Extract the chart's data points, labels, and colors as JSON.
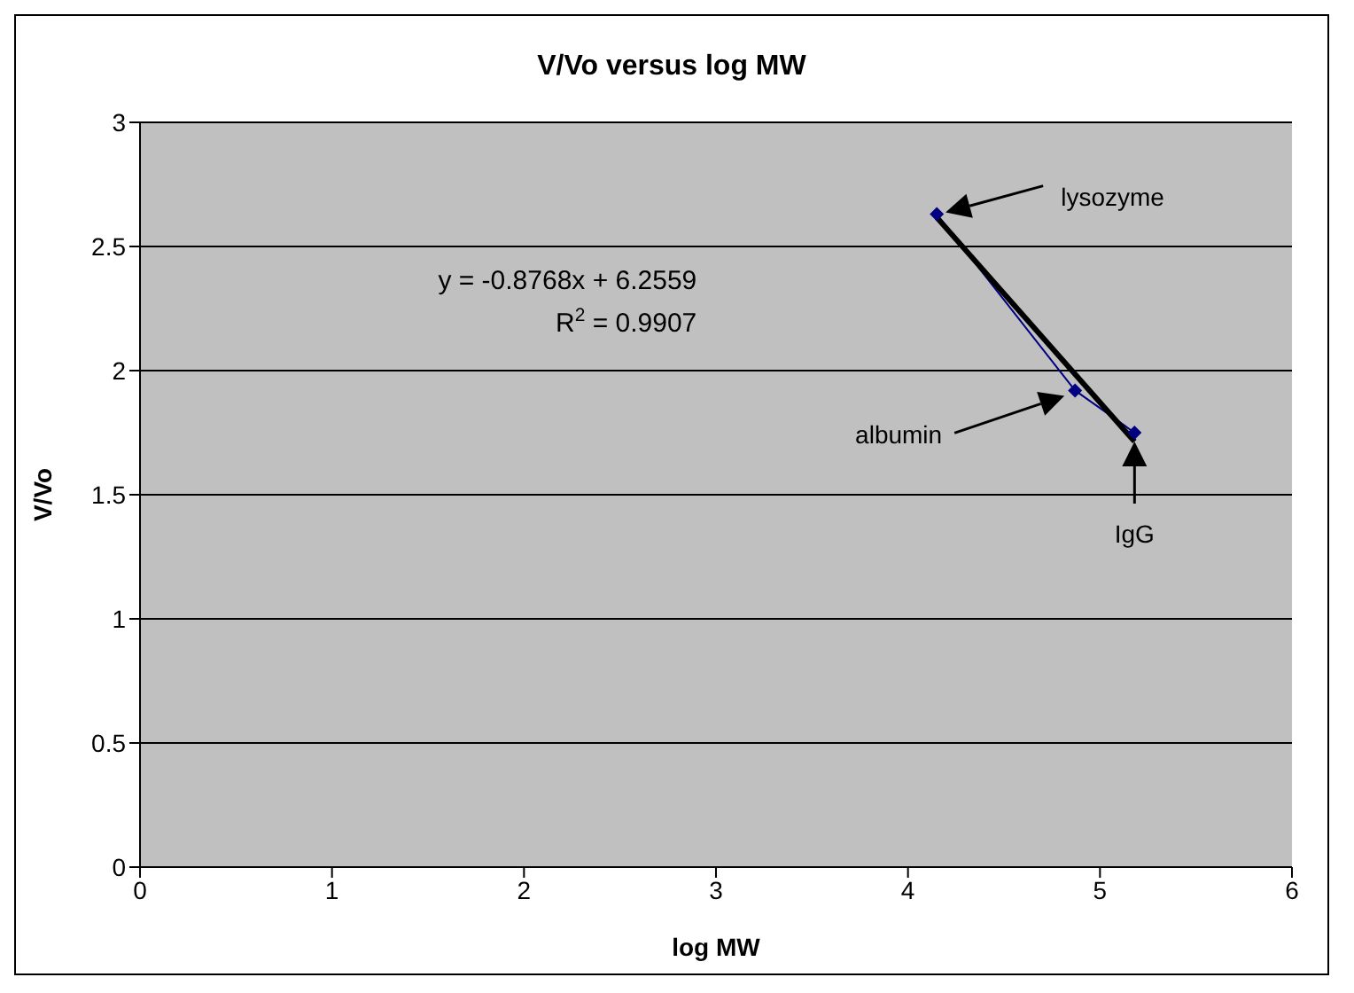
{
  "chart_data": {
    "type": "line",
    "title": "V/Vo versus log MW",
    "xlabel": "log MW",
    "ylabel": "V/Vo",
    "x": [
      4.15,
      4.87,
      5.18
    ],
    "series": [
      {
        "color": "#000080",
        "values": [
          2.63,
          1.92,
          1.75
        ],
        "marker": "diamond",
        "line_style": "solid"
      },
      {
        "color": "#000000",
        "x": [
          4.15,
          5.18
        ],
        "values": [
          2.617,
          1.714
        ],
        "marker": "none",
        "line_style": "solid"
      }
    ],
    "xlim": [
      0,
      6
    ],
    "xticks": [
      0,
      1,
      2,
      3,
      4,
      5,
      6
    ],
    "ylim": [
      0,
      3
    ],
    "yticks": [
      0,
      0.5,
      1,
      1.5,
      2,
      2.5,
      3
    ],
    "grid": "y",
    "annotations": [
      "y = -0.8768x + 6.2559",
      "R$^{2}$ = 0.9907",
      "lysozyme",
      "albumin",
      "IgG"
    ]
  }
}
